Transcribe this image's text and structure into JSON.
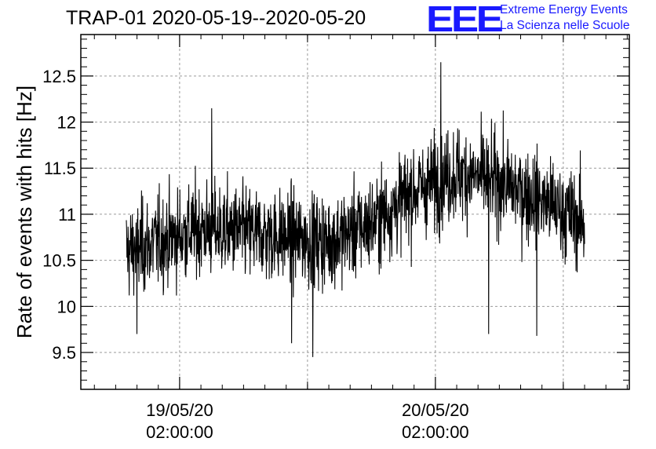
{
  "chart_data": {
    "type": "line",
    "title": "TRAP-01 2020-05-19--2020-05-20",
    "xlabel": "",
    "ylabel": "Rate of events with hits [Hz]",
    "x_start": "2020-05-18 21:00",
    "x_end": "2020-05-20 16:00",
    "ylim": [
      9.1,
      12.95
    ],
    "y_ticks": [
      "9.5",
      "10",
      "10.5",
      "11",
      "11.5",
      "12",
      "12.5"
    ],
    "x_ticks": [
      {
        "date": "19/05/20",
        "time": "02:00:00"
      },
      {
        "date": "20/05/20",
        "time": "02:00:00"
      }
    ],
    "grid": true,
    "series": [
      {
        "color": "#000000",
        "trend": [
          {
            "time": "2020-05-18 21:00",
            "rate": 10.6
          },
          {
            "time": "2020-05-19 00:00",
            "rate": 10.7
          },
          {
            "time": "2020-05-19 04:00",
            "rate": 10.85
          },
          {
            "time": "2020-05-19 08:00",
            "rate": 10.8
          },
          {
            "time": "2020-05-19 12:00",
            "rate": 10.75
          },
          {
            "time": "2020-05-19 16:00",
            "rate": 10.7
          },
          {
            "time": "2020-05-19 20:00",
            "rate": 10.9
          },
          {
            "time": "2020-05-20 00:00",
            "rate": 11.25
          },
          {
            "time": "2020-05-20 04:00",
            "rate": 11.45
          },
          {
            "time": "2020-05-20 08:00",
            "rate": 11.35
          },
          {
            "time": "2020-05-20 12:00",
            "rate": 11.15
          },
          {
            "time": "2020-05-20 16:00",
            "rate": 10.9
          }
        ],
        "spread": 0.35,
        "extremes": [
          {
            "time": "2020-05-20 02:30",
            "rate": 12.65
          },
          {
            "time": "2020-05-19 05:00",
            "rate": 12.15
          },
          {
            "time": "2020-05-19 14:30",
            "rate": 9.45
          },
          {
            "time": "2020-05-19 12:30",
            "rate": 9.6
          },
          {
            "time": "2020-05-20 07:00",
            "rate": 9.7
          },
          {
            "time": "2020-05-20 11:30",
            "rate": 9.68
          },
          {
            "time": "2020-05-18 22:00",
            "rate": 9.7
          }
        ]
      }
    ]
  },
  "logo": {
    "mark": "EEE",
    "line1": "Extreme Energy Events",
    "line2": "La Scienza nelle Scuole"
  }
}
